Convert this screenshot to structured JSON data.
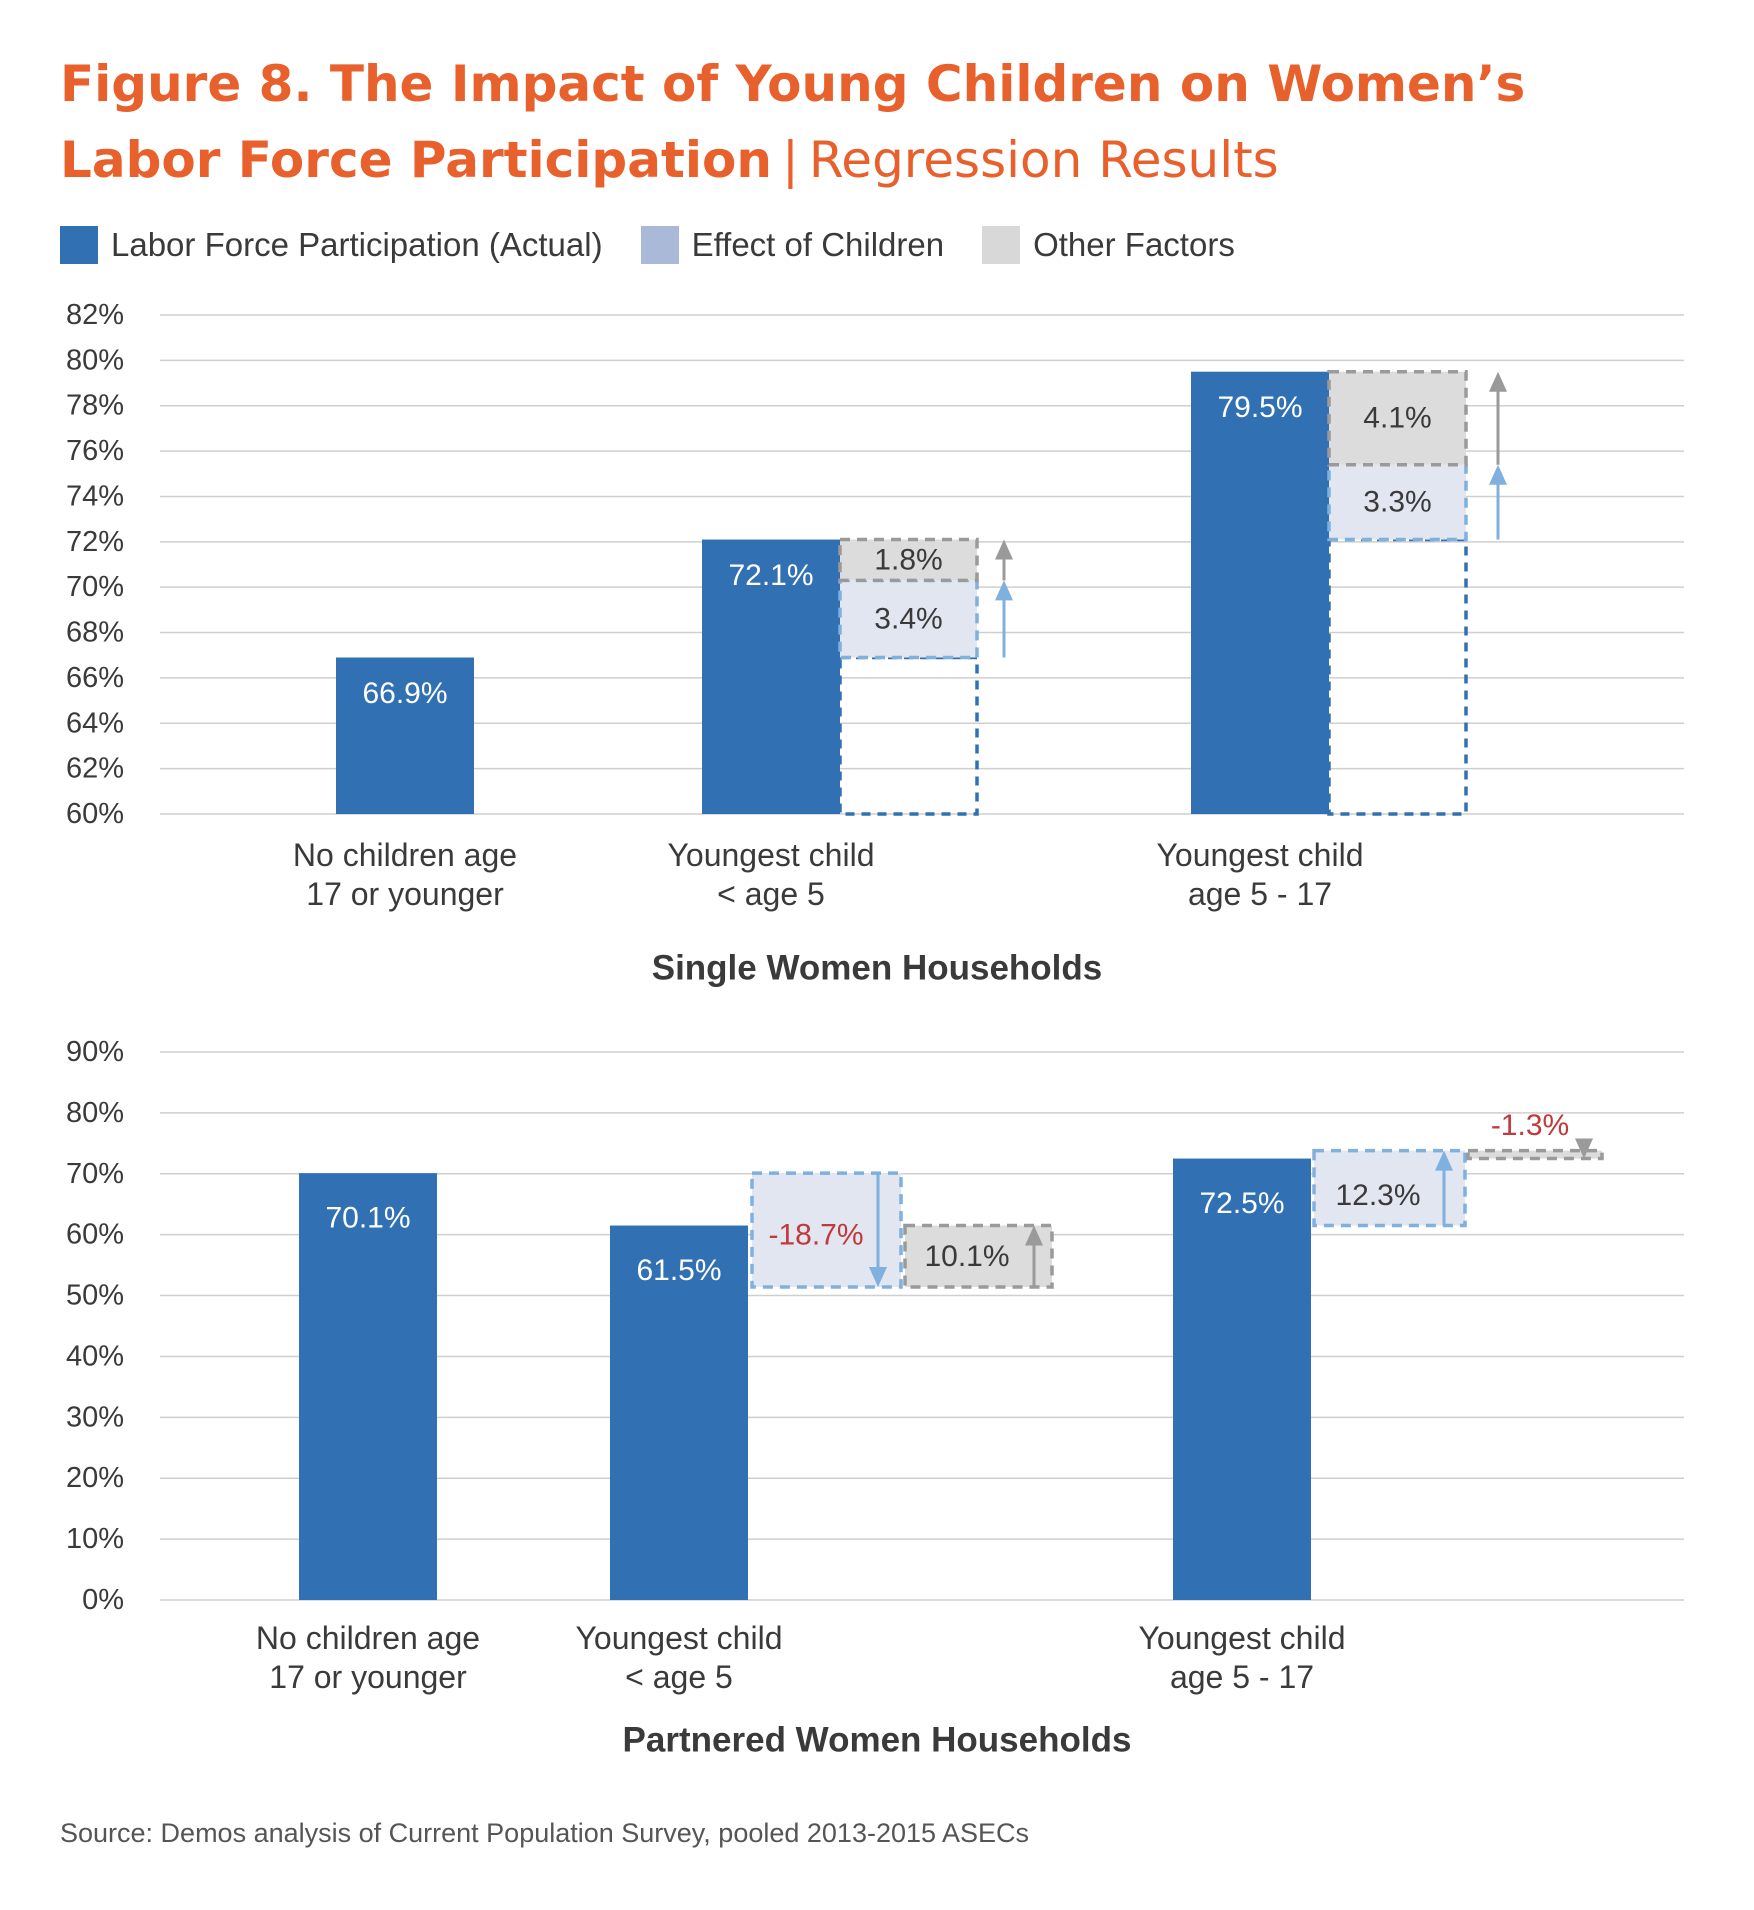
{
  "title": {
    "bold": "Figure 8. The Impact of Young Children on Women’s Labor Force Participation",
    "separator": "|",
    "subtitle": "Regression Results"
  },
  "colors": {
    "actual": "#3171b3",
    "effect_fill": "#e1e6f1",
    "effect_stroke": "#7fb0de",
    "effect_arrow": "#7fb0de",
    "other_fill": "#dcdcdc",
    "other_stroke": "#9a9a9a",
    "other_arrow": "#9a9a9a",
    "actual_outline": "#3171b3",
    "negative_text": "#c0393b",
    "grid": "#cfcfcf",
    "text": "#3a3a3a"
  },
  "legend": [
    {
      "label": "Labor Force Participation (Actual)",
      "swatch": "#3171b3",
      "icon": "square-swatch"
    },
    {
      "label": "Effect of Children",
      "swatch": "#aab9d8",
      "icon": "square-swatch"
    },
    {
      "label": "Other Factors",
      "swatch": "#d8d8d8",
      "icon": "square-swatch"
    }
  ],
  "chart_data": [
    {
      "type": "bar",
      "subtype": "waterfall-decomposition",
      "title": "Single Women Households",
      "ylim": [
        60,
        82
      ],
      "yticks": [
        60,
        62,
        64,
        66,
        68,
        70,
        72,
        74,
        76,
        78,
        80,
        82
      ],
      "ytick_suffix": "%",
      "grid": true,
      "categories": [
        [
          "No children age",
          "17 or younger"
        ],
        [
          "Youngest child",
          "< age 5"
        ],
        [
          "Youngest child",
          "age 5 - 17"
        ]
      ],
      "actual": [
        66.9,
        72.1,
        79.5
      ],
      "actual_labels": [
        "66.9%",
        "72.1%",
        "79.5%"
      ],
      "decomposition": [
        null,
        {
          "base": 66.9,
          "effect": 3.4,
          "effect_label": "3.4%",
          "other": 1.8,
          "other_label": "1.8%"
        },
        {
          "base": 72.1,
          "effect": 3.3,
          "effect_label": "3.3%",
          "other": 4.1,
          "other_label": "4.1%"
        }
      ]
    },
    {
      "type": "bar",
      "subtype": "waterfall-decomposition",
      "title": "Partnered Women Households",
      "ylim": [
        0,
        90
      ],
      "yticks": [
        0,
        10,
        20,
        30,
        40,
        50,
        60,
        70,
        80,
        90
      ],
      "ytick_suffix": "%",
      "grid": true,
      "categories": [
        [
          "No children age",
          "17 or younger"
        ],
        [
          "Youngest child",
          "< age 5"
        ],
        [
          "Youngest child",
          "age 5 - 17"
        ]
      ],
      "actual": [
        70.1,
        61.5,
        72.5
      ],
      "actual_labels": [
        "70.1%",
        "61.5%",
        "72.5%"
      ],
      "decomposition": [
        null,
        {
          "base": 70.1,
          "effect": -18.7,
          "effect_label": "-18.7%",
          "other": 10.1,
          "other_label": "10.1%"
        },
        {
          "base": 61.5,
          "effect": 12.3,
          "effect_label": "12.3%",
          "other": -1.3,
          "other_label": "-1.3%"
        }
      ]
    }
  ],
  "source": "Source: Demos analysis of Current Population Survey, pooled 2013-2015 ASECs"
}
